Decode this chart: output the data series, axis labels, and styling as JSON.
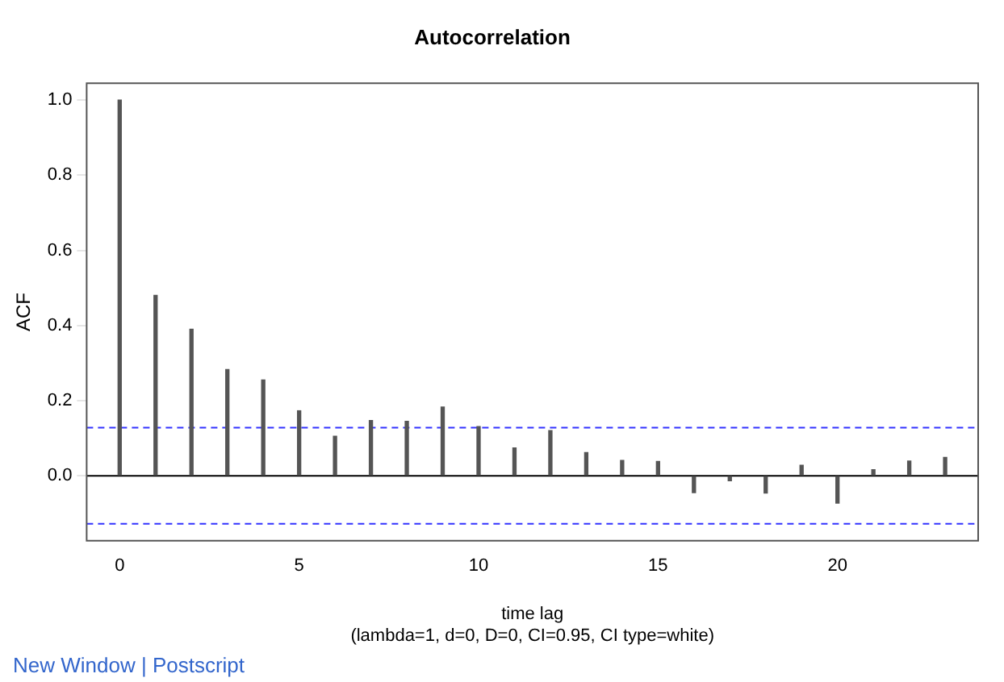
{
  "chart_data": {
    "type": "bar",
    "title": "Autocorrelation",
    "xlabel": "time lag",
    "ylabel": "ACF",
    "annotations": [
      "(lambda=1, d=0, D=0, CI=0.95, CI type=white)",
      "New Window | Postscript"
    ],
    "x": [
      0,
      1,
      2,
      3,
      4,
      5,
      6,
      7,
      8,
      9,
      10,
      11,
      12,
      13,
      14,
      15,
      16,
      17,
      18,
      19,
      20,
      21,
      22,
      23
    ],
    "series": [
      {
        "color": "#555555",
        "values": [
          1,
          0.48,
          0.39,
          0.283,
          0.255,
          0.173,
          0.105,
          0.147,
          0.145,
          0.183,
          0.131,
          0.074,
          0.12,
          0.062,
          0.041,
          0.038,
          -0.045,
          -0.013,
          -0.046,
          0.028,
          -0.073,
          0.016,
          0.039,
          0.049
        ]
      }
    ],
    "xlim": [
      -0.92,
      23.92
    ],
    "ylim": [
      -0.173,
      1.045
    ],
    "xticks": [
      0,
      5,
      10,
      15,
      20
    ],
    "yticks": [
      {
        "value": 0,
        "label": "0.0"
      },
      {
        "value": 0.2,
        "label": "0.2"
      },
      {
        "value": 0.4,
        "label": "0.4"
      },
      {
        "value": 0.6,
        "label": "0.6"
      },
      {
        "value": 0.8,
        "label": "0.8"
      },
      {
        "value": 1,
        "label": "1.0"
      }
    ],
    "ref_lines": [
      {
        "axis": "y",
        "value": 0,
        "color": "#000000",
        "line_style": "solid"
      },
      {
        "axis": "y",
        "value": 0.128,
        "color": "#3333ff",
        "line_style": "dashed"
      },
      {
        "axis": "y",
        "value": -0.128,
        "color": "#3333ff",
        "line_style": "dashed"
      }
    ],
    "grid": false,
    "legend": false
  }
}
